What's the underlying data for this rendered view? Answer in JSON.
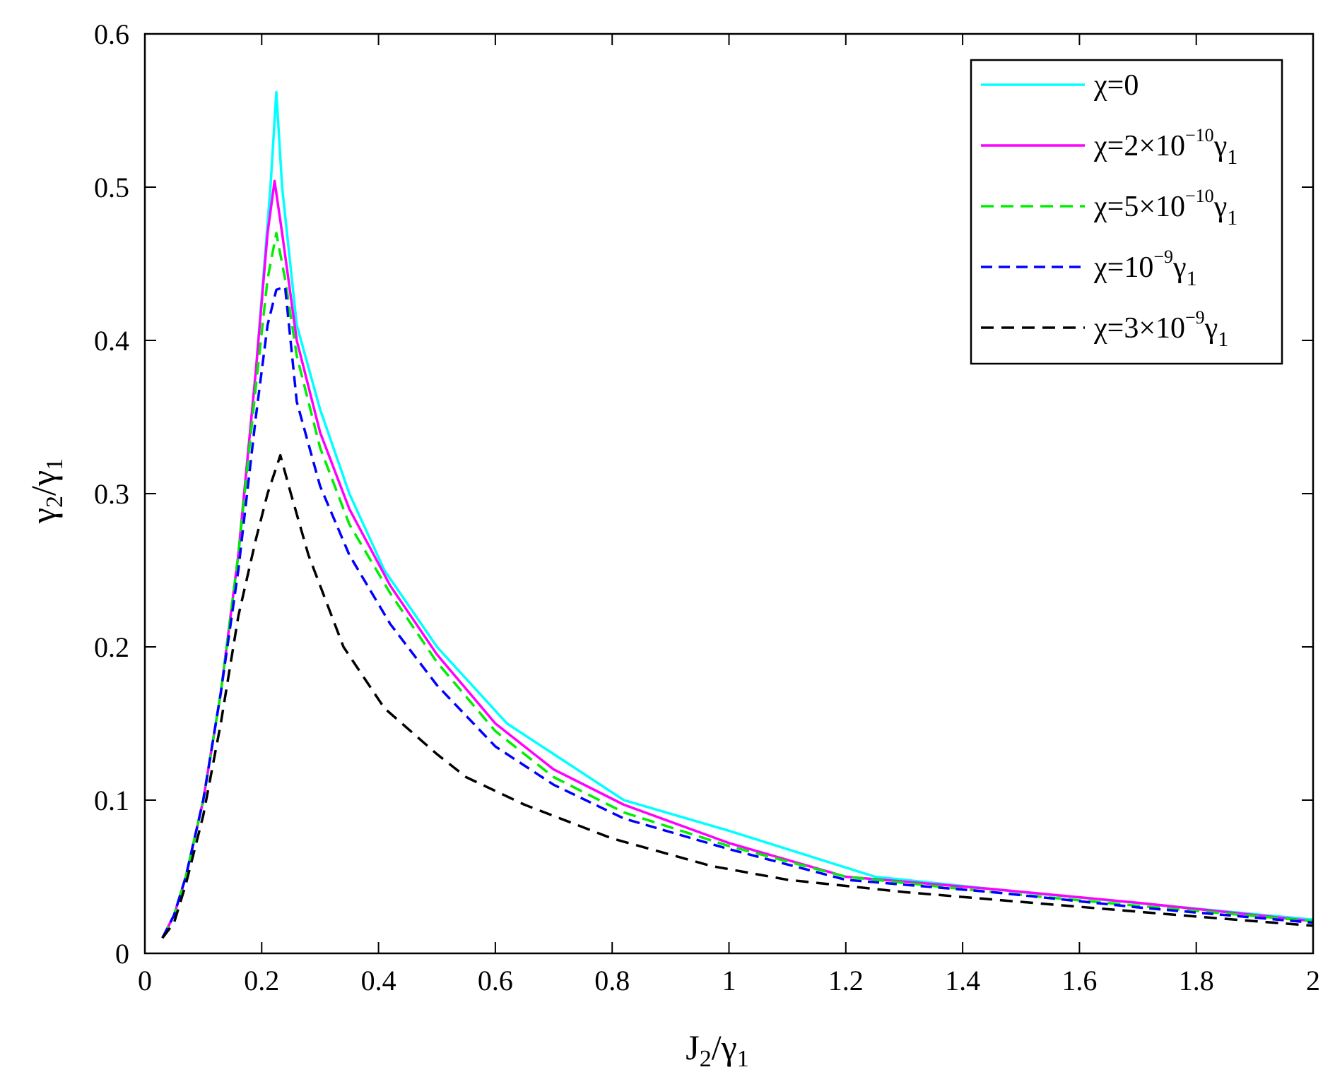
{
  "chart_data": {
    "type": "line",
    "xlabel": {
      "main": "J",
      "sub": "2",
      "slash": "/",
      "den": "γ",
      "den_sub": "1"
    },
    "ylabel": {
      "main": "γ",
      "sub": "2",
      "slash": "/",
      "den": "γ",
      "den_sub": "1"
    },
    "xlim": [
      0,
      2
    ],
    "ylim": [
      0,
      0.6
    ],
    "xticks": [
      0,
      0.2,
      0.4,
      0.6,
      0.8,
      1,
      1.2,
      1.4,
      1.6,
      1.8,
      2
    ],
    "xtick_labels": [
      "0",
      "0.2",
      "0.4",
      "0.6",
      "0.8",
      "1",
      "1.2",
      "1.4",
      "1.6",
      "1.8",
      "2"
    ],
    "yticks": [
      0,
      0.1,
      0.2,
      0.3,
      0.4,
      0.5,
      0.6
    ],
    "ytick_labels": [
      "0",
      "0.1",
      "0.2",
      "0.3",
      "0.4",
      "0.5",
      "0.6"
    ],
    "grid": false,
    "legend_position": "top-right",
    "series": [
      {
        "legend": {
          "prefix": "χ=0",
          "sup": "",
          "mid": "",
          "sub": ""
        },
        "color": "#00ffff",
        "dash": "solid",
        "x": [
          0.03,
          0.05,
          0.07,
          0.1,
          0.13,
          0.16,
          0.19,
          0.215,
          0.225,
          0.235,
          0.26,
          0.3,
          0.35,
          0.41,
          0.5,
          0.62,
          0.7,
          0.82,
          1.0,
          1.25,
          1.5,
          1.75,
          2.0
        ],
        "y": [
          0.01,
          0.025,
          0.05,
          0.1,
          0.17,
          0.26,
          0.38,
          0.5,
          0.562,
          0.5,
          0.41,
          0.355,
          0.3,
          0.25,
          0.2,
          0.15,
          0.13,
          0.1,
          0.08,
          0.05,
          0.04,
          0.031,
          0.022
        ]
      },
      {
        "legend": {
          "prefix": "χ=2×10",
          "sup": "−10",
          "mid": "γ",
          "sub": "1"
        },
        "color": "#ff00ff",
        "dash": "solid",
        "x": [
          0.03,
          0.05,
          0.07,
          0.1,
          0.13,
          0.16,
          0.19,
          0.21,
          0.222,
          0.235,
          0.26,
          0.3,
          0.35,
          0.42,
          0.5,
          0.6,
          0.7,
          0.82,
          1.0,
          1.2,
          1.45,
          1.7,
          2.0
        ],
        "y": [
          0.01,
          0.025,
          0.05,
          0.1,
          0.17,
          0.26,
          0.38,
          0.47,
          0.504,
          0.47,
          0.4,
          0.34,
          0.29,
          0.24,
          0.195,
          0.15,
          0.12,
          0.097,
          0.072,
          0.05,
          0.042,
          0.033,
          0.021
        ]
      },
      {
        "legend": {
          "prefix": "χ=5×10",
          "sup": "−10",
          "mid": "γ",
          "sub": "1"
        },
        "color": "#00ee00",
        "dash": "18,10",
        "x": [
          0.03,
          0.05,
          0.07,
          0.1,
          0.13,
          0.16,
          0.19,
          0.21,
          0.225,
          0.24,
          0.26,
          0.3,
          0.35,
          0.42,
          0.5,
          0.6,
          0.7,
          0.82,
          1.0,
          1.2,
          1.45,
          1.7,
          2.0
        ],
        "y": [
          0.01,
          0.025,
          0.05,
          0.1,
          0.17,
          0.26,
          0.37,
          0.44,
          0.47,
          0.44,
          0.39,
          0.33,
          0.28,
          0.235,
          0.19,
          0.145,
          0.115,
          0.092,
          0.07,
          0.05,
          0.04,
          0.031,
          0.021
        ]
      },
      {
        "legend": {
          "prefix": "χ=10",
          "sup": "−9",
          "mid": "γ",
          "sub": "1"
        },
        "color": "#0000ff",
        "dash": "16,9",
        "x": [
          0.03,
          0.05,
          0.07,
          0.1,
          0.13,
          0.16,
          0.19,
          0.21,
          0.225,
          0.24,
          0.26,
          0.3,
          0.35,
          0.42,
          0.5,
          0.6,
          0.7,
          0.82,
          1.0,
          1.2,
          1.45,
          1.7,
          2.0
        ],
        "y": [
          0.01,
          0.025,
          0.05,
          0.1,
          0.17,
          0.25,
          0.35,
          0.41,
          0.433,
          0.435,
          0.36,
          0.305,
          0.26,
          0.215,
          0.175,
          0.135,
          0.11,
          0.088,
          0.068,
          0.048,
          0.04,
          0.03,
          0.02
        ]
      },
      {
        "legend": {
          "prefix": "χ=3×10",
          "sup": "−9",
          "mid": "γ",
          "sub": "1"
        },
        "color": "#000000",
        "dash": "18,11",
        "x": [
          0.03,
          0.05,
          0.07,
          0.1,
          0.13,
          0.16,
          0.19,
          0.21,
          0.232,
          0.25,
          0.28,
          0.34,
          0.41,
          0.5,
          0.55,
          0.65,
          0.8,
          0.97,
          1.1,
          1.3,
          1.55,
          1.8,
          2.0
        ],
        "y": [
          0.01,
          0.02,
          0.045,
          0.09,
          0.15,
          0.22,
          0.27,
          0.3,
          0.325,
          0.3,
          0.26,
          0.2,
          0.16,
          0.13,
          0.115,
          0.097,
          0.075,
          0.057,
          0.048,
          0.04,
          0.032,
          0.024,
          0.018
        ]
      }
    ]
  }
}
